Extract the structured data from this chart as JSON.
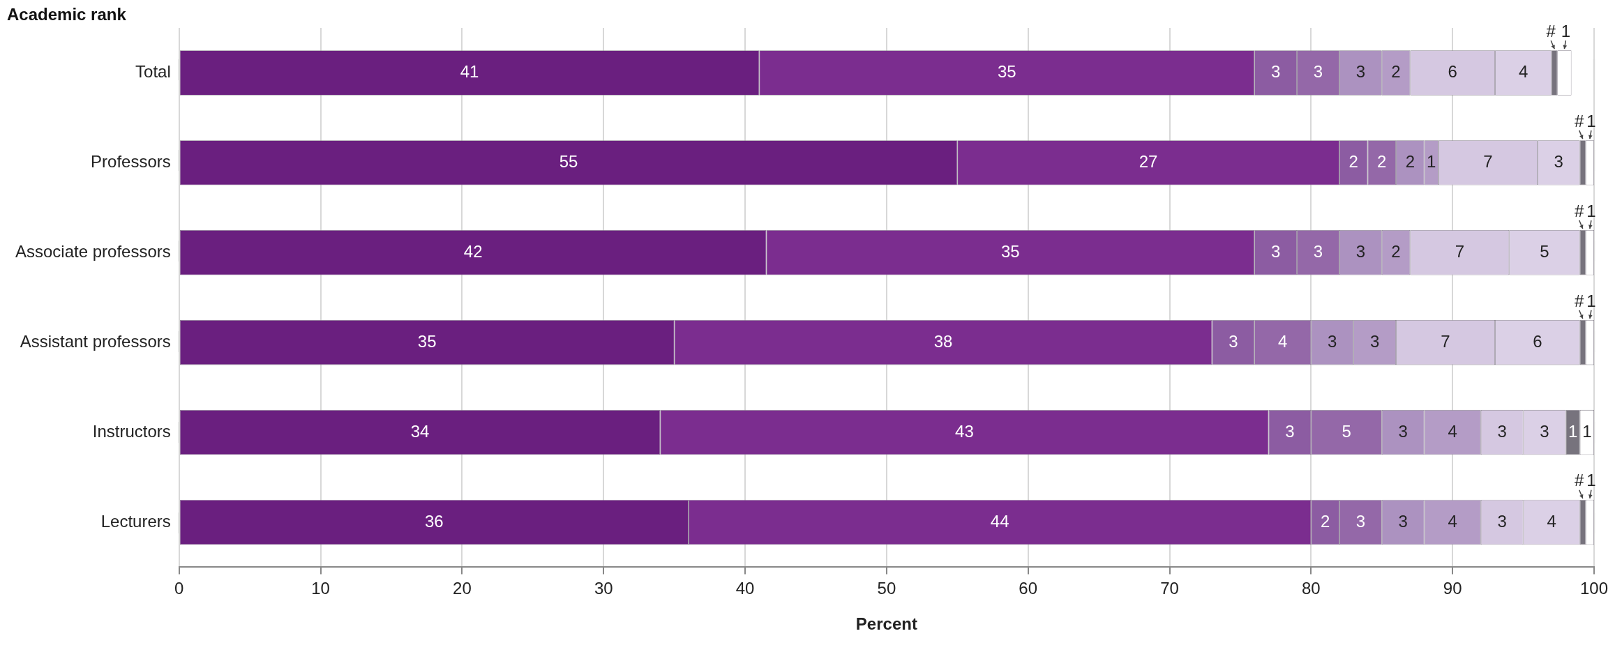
{
  "chart_data": {
    "type": "bar",
    "orientation": "horizontal",
    "stacked": true,
    "ylabel": "Academic rank",
    "xlabel": "Percent",
    "categories": [
      "Total",
      "Professors",
      "Associate professors",
      "Assistant professors",
      "Instructors",
      "Lecturers"
    ],
    "xlim": [
      0,
      100
    ],
    "xticks": [
      0,
      10,
      20,
      30,
      40,
      50,
      60,
      70,
      80,
      90,
      100
    ],
    "grid": "x",
    "legend": false,
    "data_labels": true,
    "series": [
      {
        "color": "#6a1f7f",
        "values": [
          41,
          55,
          41.5,
          35,
          34,
          36
        ],
        "value_labels": [
          "41",
          "55",
          "42",
          "35",
          "34",
          "36"
        ]
      },
      {
        "color": "#7b2d8f",
        "values": [
          35,
          27,
          34.5,
          38,
          43,
          44
        ],
        "value_labels": [
          "35",
          "27",
          "35",
          "38",
          "43",
          "44"
        ]
      },
      {
        "color": "#8c5ca2",
        "values": [
          3,
          2,
          3,
          3,
          3,
          2
        ]
      },
      {
        "color": "#9468a8",
        "values": [
          3,
          2,
          3,
          4,
          5,
          3
        ]
      },
      {
        "color": "#ac92c0",
        "values": [
          3,
          2,
          3,
          3,
          3,
          3
        ]
      },
      {
        "color": "#b49cc6",
        "values": [
          2,
          1,
          2,
          3,
          4,
          4
        ]
      },
      {
        "color": "#d5c8e1",
        "values": [
          6,
          7,
          7,
          7,
          3,
          3
        ]
      },
      {
        "color": "#dbd0e6",
        "values": [
          4,
          3,
          5,
          6,
          3,
          4
        ]
      },
      {
        "color": "#77737d",
        "values": [
          0.4,
          0.4,
          0.4,
          0.4,
          1,
          0.4
        ],
        "value_labels": [
          "#",
          "#",
          "#",
          "#",
          "1",
          "#"
        ]
      },
      {
        "color": "#ffffff",
        "values": [
          1,
          0.6,
          0.6,
          0.6,
          1,
          0.6
        ],
        "value_labels": [
          "1",
          "1",
          "1",
          "1",
          "1",
          "1"
        ]
      }
    ]
  }
}
